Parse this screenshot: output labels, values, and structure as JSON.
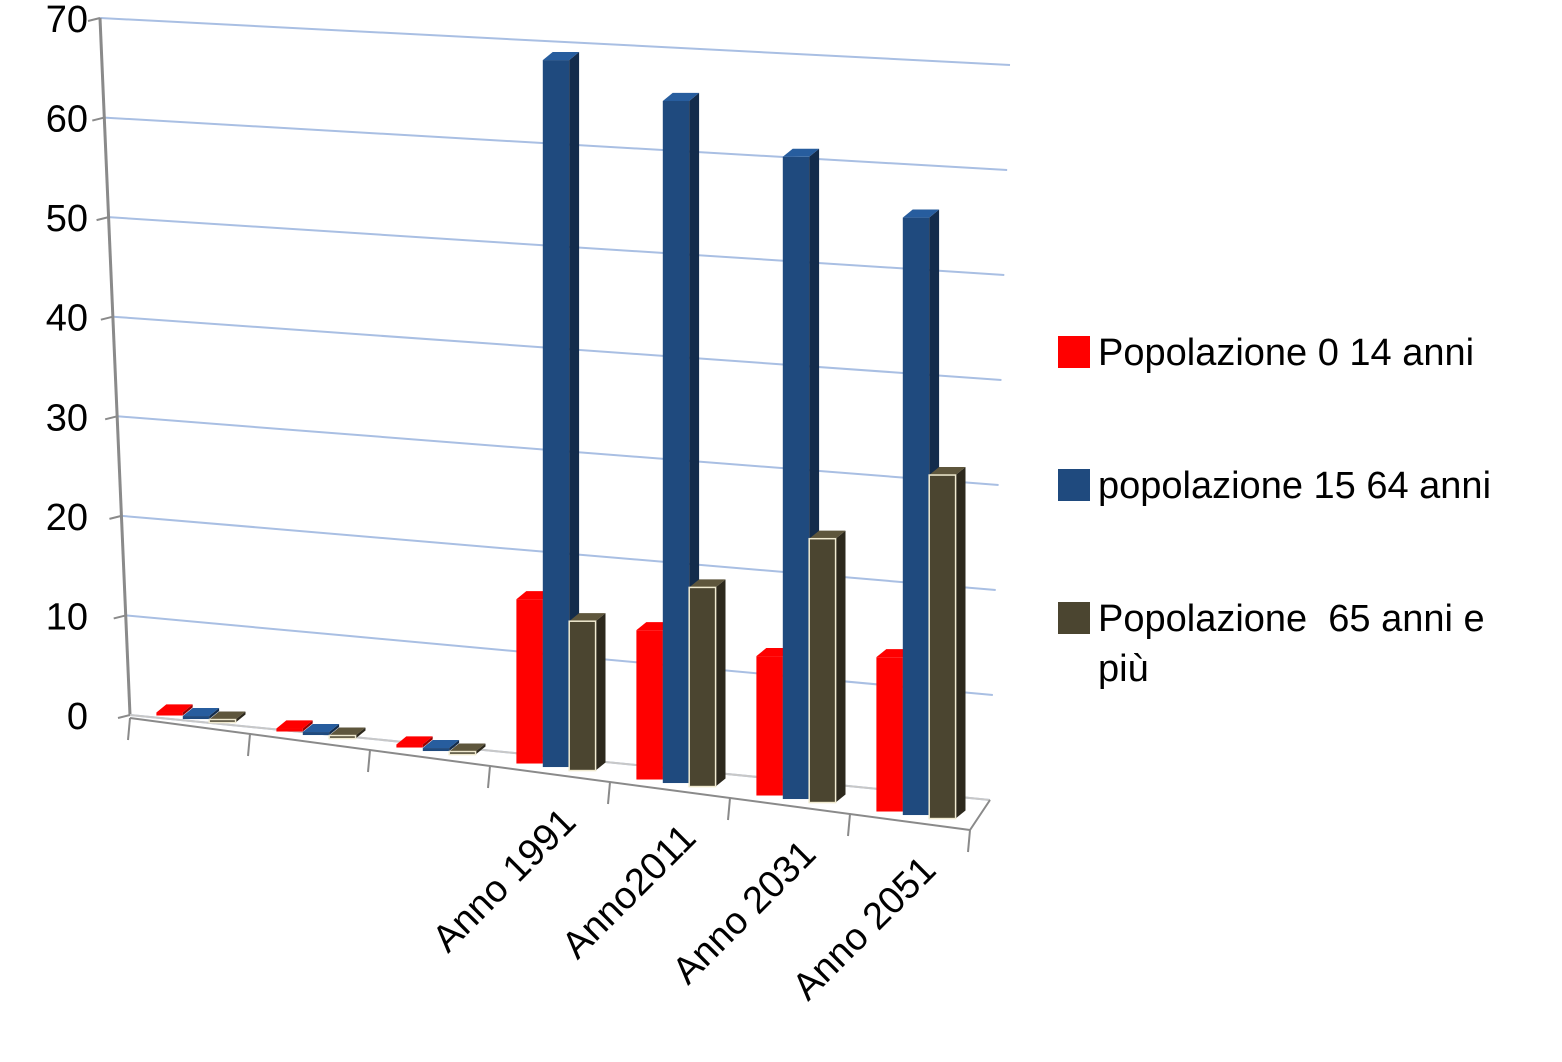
{
  "chart_data": {
    "type": "bar",
    "title": "",
    "xlabel": "",
    "ylabel": "",
    "ylim": [
      0,
      70
    ],
    "yticks": [
      "0",
      "10",
      "20",
      "30",
      "40",
      "50",
      "60",
      "70"
    ],
    "categories": [
      "",
      "",
      "",
      "Anno 1991",
      "Anno2011",
      "Anno 2031",
      "Anno 2051"
    ],
    "series": [
      {
        "name": "Popolazione 0 14 anni",
        "color": "#ff0000",
        "values": [
          0,
          0,
          0,
          16.5,
          15.0,
          14.0,
          15.5
        ]
      },
      {
        "name": "popolazione 15 64 anni",
        "color": "#1f4a7e",
        "values": [
          0,
          0,
          0,
          71.0,
          68.5,
          64.5,
          60.0
        ]
      },
      {
        "name": "Popolazione  65 anni e più",
        "color": "#4b4530",
        "values": [
          0,
          0,
          0,
          15.0,
          20.0,
          26.5,
          34.5
        ]
      }
    ],
    "grid": true,
    "legend_position": "right"
  }
}
